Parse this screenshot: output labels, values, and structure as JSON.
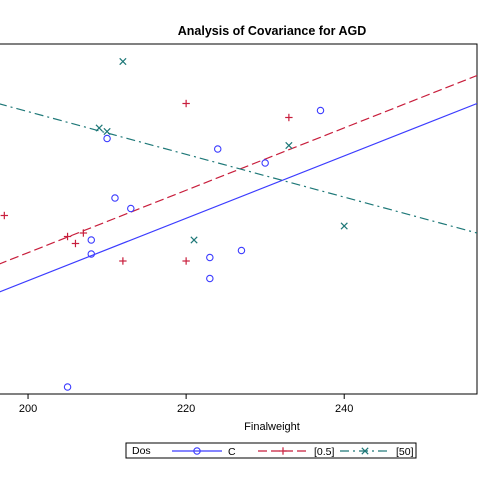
{
  "chart_data": {
    "type": "scatter",
    "title": "Analysis of Covariance for AGD",
    "xlabel": "Finalweight",
    "ylabel": "",
    "xlim": [
      196.2,
      256.8
    ],
    "ylim": [
      0,
      1
    ],
    "x_ticks": [
      "200",
      "220",
      "240"
    ],
    "x_tick_values": [
      200,
      220,
      240
    ],
    "grid": false,
    "legend": {
      "title": "Dos",
      "position": "bottom",
      "entries": [
        "C",
        "[0.5]",
        "[50]"
      ]
    },
    "series": [
      {
        "name": "C",
        "color": "#3c3cff",
        "marker": "circle",
        "line_dash": "solid",
        "points": [
          {
            "x": 205,
            "y": 0.02
          },
          {
            "x": 208,
            "y": 0.44
          },
          {
            "x": 208,
            "y": 0.4
          },
          {
            "x": 210,
            "y": 0.73
          },
          {
            "x": 211,
            "y": 0.56
          },
          {
            "x": 213,
            "y": 0.53
          },
          {
            "x": 223,
            "y": 0.39
          },
          {
            "x": 223,
            "y": 0.33
          },
          {
            "x": 224,
            "y": 0.7
          },
          {
            "x": 227,
            "y": 0.41
          },
          {
            "x": 230,
            "y": 0.66
          },
          {
            "x": 237,
            "y": 0.81
          }
        ],
        "fit": [
          {
            "x": 196.2,
            "y": 0.29
          },
          {
            "x": 256.8,
            "y": 0.83
          }
        ]
      },
      {
        "name": "[0.5]",
        "color": "#c81e3c",
        "marker": "plus",
        "line_dash": "dashed",
        "points": [
          {
            "x": 197,
            "y": 0.51
          },
          {
            "x": 205,
            "y": 0.45
          },
          {
            "x": 206,
            "y": 0.43
          },
          {
            "x": 207,
            "y": 0.46
          },
          {
            "x": 212,
            "y": 0.38
          },
          {
            "x": 220,
            "y": 0.83
          },
          {
            "x": 220,
            "y": 0.38
          },
          {
            "x": 233,
            "y": 0.79
          }
        ],
        "fit": [
          {
            "x": 196.2,
            "y": 0.37
          },
          {
            "x": 256.8,
            "y": 0.91
          }
        ]
      },
      {
        "name": "[50]",
        "color": "#1e7878",
        "marker": "x",
        "line_dash": "dashdot",
        "points": [
          {
            "x": 212,
            "y": 0.95
          },
          {
            "x": 209,
            "y": 0.76
          },
          {
            "x": 210,
            "y": 0.75
          },
          {
            "x": 221,
            "y": 0.44
          },
          {
            "x": 233,
            "y": 0.71
          },
          {
            "x": 240,
            "y": 0.48
          }
        ],
        "fit": [
          {
            "x": 196.2,
            "y": 0.83
          },
          {
            "x": 256.8,
            "y": 0.46
          }
        ]
      }
    ]
  }
}
